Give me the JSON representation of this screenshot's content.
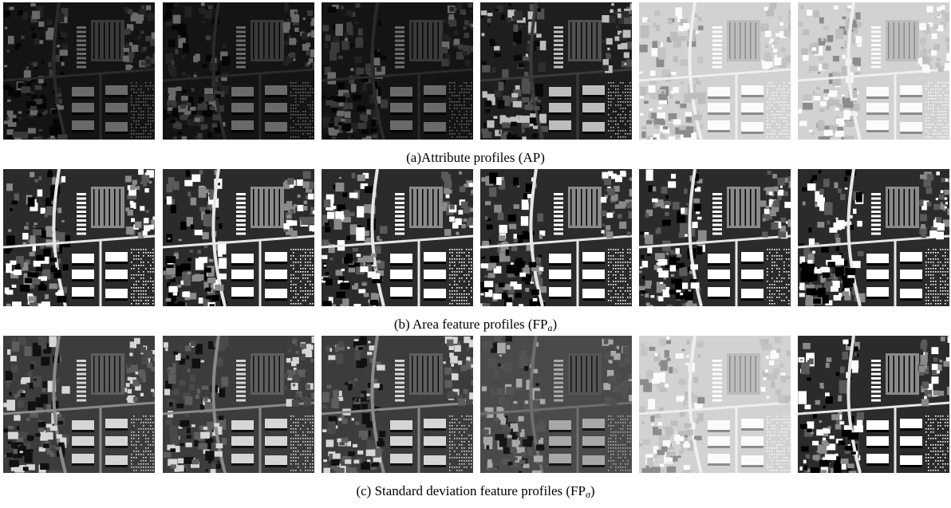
{
  "figure": {
    "rows": [
      {
        "key": "ap",
        "caption_text": "(a)Attribute profiles (AP)",
        "caption_sub": "",
        "caption_close": "",
        "tiles": [
          {
            "tone": "dark"
          },
          {
            "tone": "dark"
          },
          {
            "tone": "dark"
          },
          {
            "tone": "dim"
          },
          {
            "tone": "bright"
          },
          {
            "tone": "bright"
          }
        ]
      },
      {
        "key": "fpa",
        "caption_text": "(b) Area feature profiles (FP",
        "caption_sub": "a",
        "caption_close": ")",
        "tiles": [
          {
            "tone": "high-contrast"
          },
          {
            "tone": "high-contrast"
          },
          {
            "tone": "high-contrast"
          },
          {
            "tone": "high-contrast"
          },
          {
            "tone": "high-contrast"
          },
          {
            "tone": "high-contrast"
          }
        ]
      },
      {
        "key": "fps",
        "caption_text": "(c) Standard deviation feature profiles (FP",
        "caption_sub": "σ",
        "caption_close": ")",
        "tiles": [
          {
            "tone": "medium"
          },
          {
            "tone": "medium"
          },
          {
            "tone": "medium"
          },
          {
            "tone": "flat"
          },
          {
            "tone": "bright"
          },
          {
            "tone": "high-contrast"
          }
        ]
      }
    ]
  }
}
